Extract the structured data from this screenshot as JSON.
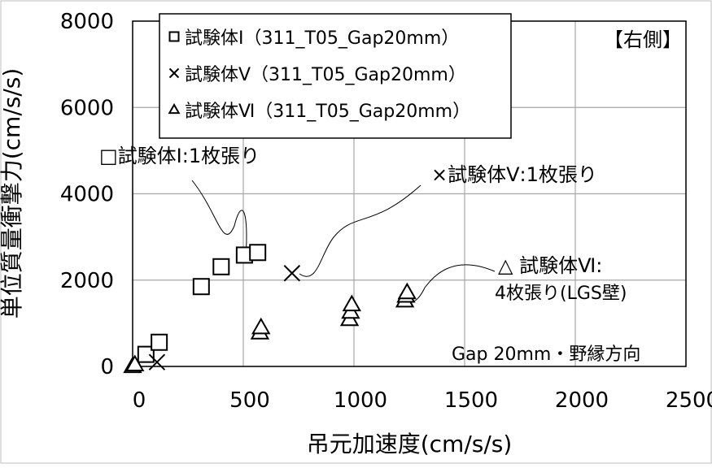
{
  "chart_data": {
    "type": "scatter",
    "xlabel": "吊元加速度(cm/s/s)",
    "ylabel": "単位質量衝撃力(cm/s/s)",
    "xlim": [
      0,
      2500
    ],
    "ylim": [
      0,
      8000
    ],
    "x_ticks": [
      "0",
      "500",
      "1000",
      "1500",
      "2000",
      "2500"
    ],
    "y_ticks": [
      "0",
      "2000",
      "4000",
      "6000",
      "8000"
    ],
    "grid": true,
    "legend_position": "top-left",
    "series": [
      {
        "name": "試験体Ⅰ（311_T05_Gap20mm）",
        "marker": "square",
        "points": [
          [
            60,
            280
          ],
          [
            120,
            560
          ],
          [
            310,
            1850
          ],
          [
            400,
            2310
          ],
          [
            505,
            2580
          ],
          [
            565,
            2640
          ]
        ]
      },
      {
        "name": "試験体Ⅴ（311_T05_Gap20mm）",
        "marker": "x",
        "points": [
          [
            110,
            100
          ],
          [
            720,
            2160
          ]
        ]
      },
      {
        "name": "試験体Ⅵ（311_T05_Gap20mm）",
        "marker": "triangle",
        "points": [
          [
            0,
            0
          ],
          [
            10,
            40
          ],
          [
            575,
            780
          ],
          [
            580,
            900
          ],
          [
            980,
            1090
          ],
          [
            985,
            1260
          ],
          [
            990,
            1430
          ],
          [
            1230,
            1520
          ],
          [
            1235,
            1630
          ],
          [
            1240,
            1710
          ]
        ]
      }
    ],
    "annotations": {
      "side_label": "【右側】",
      "series1_note": "□試験体Ⅰ:1枚張り",
      "series2_note": "×試験体Ⅴ:1枚張り",
      "series3_note_line1": "△ 試験体Ⅵ:",
      "series3_note_line2": "4枚張り(LGS壁)",
      "condition": "Gap 20mm・野縁方向"
    }
  }
}
